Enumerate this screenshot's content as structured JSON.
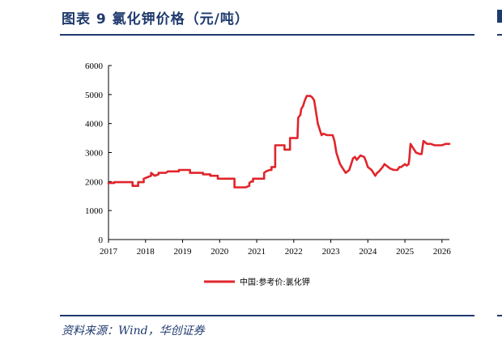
{
  "figure": {
    "title": "图表 9    氯化钾价格（元/吨）",
    "source": "资料来源：Wind，华创证券"
  },
  "colors": {
    "accent": "#1f3a6e",
    "series": "#e0252b"
  },
  "chart_data": {
    "type": "line",
    "title": "",
    "xlabel": "",
    "ylabel": "",
    "ylim": [
      0,
      6000
    ],
    "yticks": [
      0,
      1000,
      2000,
      3000,
      4000,
      5000,
      6000
    ],
    "xlim": [
      2017,
      2026.2
    ],
    "xticks": [
      2017,
      2018,
      2019,
      2020,
      2021,
      2022,
      2023,
      2024,
      2025,
      2026
    ],
    "grid": false,
    "legend": "bottom-center",
    "series": [
      {
        "name": "中国:参考价:氯化钾",
        "x": [
          2017.0,
          2017.15,
          2017.15,
          2017.4,
          2017.65,
          2017.65,
          2017.8,
          2017.8,
          2017.95,
          2017.95,
          2018.05,
          2018.15,
          2018.15,
          2018.25,
          2018.35,
          2018.35,
          2018.55,
          2018.6,
          2018.9,
          2018.9,
          2019.2,
          2019.2,
          2019.55,
          2019.55,
          2019.75,
          2019.75,
          2019.95,
          2019.95,
          2020.4,
          2020.4,
          2020.7,
          2020.8,
          2020.8,
          2020.85,
          2020.9,
          2020.9,
          2021.2,
          2021.2,
          2021.25,
          2021.35,
          2021.4,
          2021.4,
          2021.5,
          2021.5,
          2021.55,
          2021.55,
          2021.75,
          2021.75,
          2021.9,
          2021.9,
          2022.0,
          2022.0,
          2022.1,
          2022.12,
          2022.18,
          2022.2,
          2022.25,
          2022.3,
          2022.35,
          2022.45,
          2022.5,
          2022.55,
          2022.6,
          2022.65,
          2022.7,
          2022.75,
          2022.8,
          2022.9,
          2023.05,
          2023.1,
          2023.15,
          2023.25,
          2023.4,
          2023.5,
          2023.6,
          2023.65,
          2023.7,
          2023.8,
          2023.9,
          2023.95,
          2024.0,
          2024.1,
          2024.2,
          2024.25,
          2024.3,
          2024.4,
          2024.45,
          2024.5,
          2024.6,
          2024.7,
          2024.8,
          2024.85,
          2024.9,
          2025.0,
          2025.05,
          2025.1,
          2025.12,
          2025.15,
          2025.2,
          2025.3,
          2025.4,
          2025.45,
          2025.5,
          2025.6,
          2025.7,
          2025.8,
          2025.9,
          2026.0,
          2026.1,
          2026.2
        ],
        "values": [
          1950,
          1950,
          1980,
          1980,
          1980,
          1850,
          1850,
          1980,
          1980,
          2100,
          2150,
          2200,
          2300,
          2200,
          2250,
          2300,
          2300,
          2350,
          2350,
          2400,
          2400,
          2300,
          2300,
          2250,
          2250,
          2200,
          2200,
          2100,
          2100,
          1800,
          1800,
          1850,
          1950,
          2000,
          2000,
          2100,
          2100,
          2300,
          2350,
          2400,
          2400,
          2500,
          2500,
          3250,
          3250,
          3250,
          3250,
          3100,
          3100,
          3500,
          3500,
          3500,
          3500,
          4200,
          4300,
          4500,
          4600,
          4800,
          4950,
          4950,
          4900,
          4800,
          4400,
          4000,
          3800,
          3600,
          3650,
          3600,
          3600,
          3400,
          3000,
          2600,
          2300,
          2400,
          2800,
          2850,
          2750,
          2900,
          2850,
          2700,
          2500,
          2400,
          2200,
          2300,
          2350,
          2500,
          2600,
          2550,
          2450,
          2400,
          2400,
          2500,
          2500,
          2600,
          2550,
          2600,
          2800,
          3300,
          3200,
          3000,
          2950,
          2950,
          3400,
          3300,
          3300,
          3250,
          3250,
          3250,
          3300,
          3300
        ]
      }
    ]
  }
}
